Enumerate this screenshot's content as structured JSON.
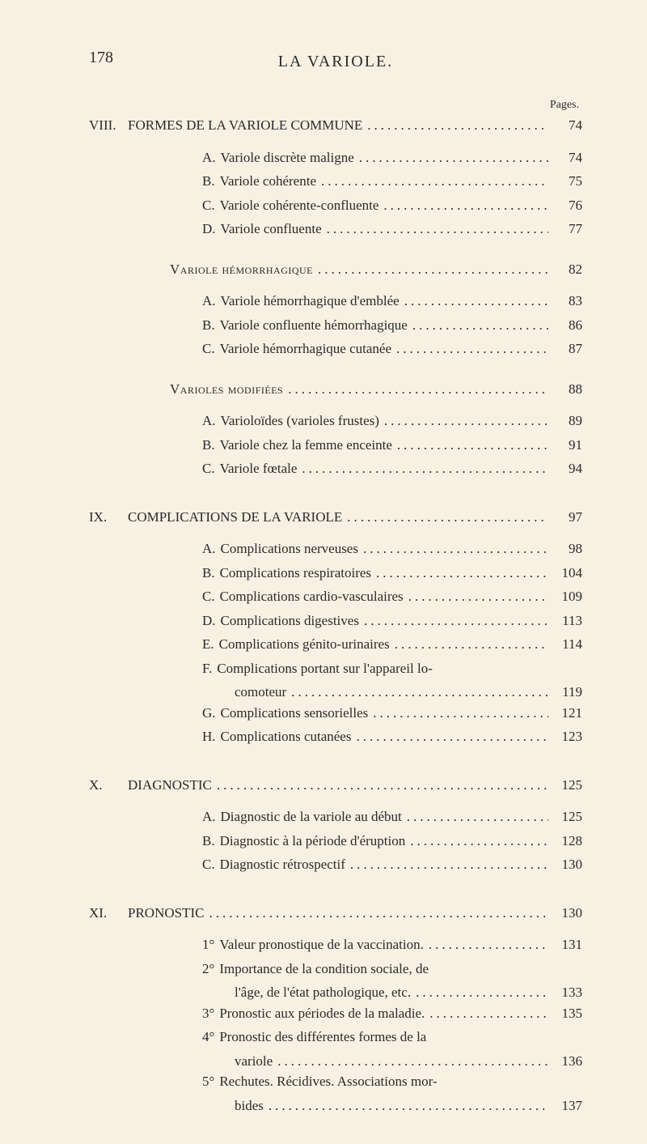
{
  "page_number": "178",
  "running_head": "LA VARIOLE.",
  "pages_label": "Pages.",
  "entries": [
    {
      "roman": "VIII.",
      "text": "FORMES DE LA VARIOLE COMMUNE",
      "page": "74",
      "style": "main"
    },
    {
      "letter": "A.",
      "text": "Variole discrète maligne",
      "page": "74",
      "style": "sub"
    },
    {
      "letter": "B.",
      "text": "Variole cohérente",
      "page": "75",
      "style": "sub"
    },
    {
      "letter": "C.",
      "text": "Variole cohérente-confluente",
      "page": "76",
      "style": "sub"
    },
    {
      "letter": "D.",
      "text": "Variole confluente",
      "page": "77",
      "style": "sub"
    },
    {
      "text": "Variole hémorrhagique",
      "page": "82",
      "style": "smallcaps"
    },
    {
      "letter": "A.",
      "text": "Variole hémorrhagique d'emblée",
      "page": "83",
      "style": "sub"
    },
    {
      "letter": "B.",
      "text": "Variole confluente hémorrhagique",
      "page": "86",
      "style": "sub"
    },
    {
      "letter": "C.",
      "text": "Variole hémorrhagique cutanée",
      "page": "87",
      "style": "sub"
    },
    {
      "text": "Varioles modifiées",
      "page": "88",
      "style": "smallcaps"
    },
    {
      "letter": "A.",
      "text": "Varioloïdes (varioles frustes)",
      "page": "89",
      "style": "sub"
    },
    {
      "letter": "B.",
      "text": "Variole chez la femme enceinte",
      "page": "91",
      "style": "sub"
    },
    {
      "letter": "C.",
      "text": "Variole fœtale",
      "page": "94",
      "style": "sub"
    },
    {
      "roman": "IX.",
      "text": "COMPLICATIONS DE LA VARIOLE",
      "page": "97",
      "style": "main"
    },
    {
      "letter": "A.",
      "text": "Complications nerveuses",
      "page": "98",
      "style": "sub"
    },
    {
      "letter": "B.",
      "text": "Complications respiratoires",
      "page": "104",
      "style": "sub"
    },
    {
      "letter": "C.",
      "text": "Complications cardio-vasculaires",
      "page": "109",
      "style": "sub"
    },
    {
      "letter": "D.",
      "text": "Complications digestives",
      "page": "113",
      "style": "sub"
    },
    {
      "letter": "E.",
      "text": "Complications génito-urinaires",
      "page": "114",
      "style": "sub"
    },
    {
      "letter": "F.",
      "text": "Complications portant sur l'appareil lo-",
      "page": "",
      "style": "sub_nowrap_nopage"
    },
    {
      "text": "comoteur",
      "page": "119",
      "style": "continuation"
    },
    {
      "letter": "G.",
      "text": "Complications sensorielles",
      "page": "121",
      "style": "sub"
    },
    {
      "letter": "H.",
      "text": "Complications cutanées",
      "page": "123",
      "style": "sub"
    },
    {
      "roman": "X.",
      "text": "DIAGNOSTIC",
      "page": "125",
      "style": "main"
    },
    {
      "letter": "A.",
      "text": "Diagnostic de la variole au début",
      "page": "125",
      "style": "sub"
    },
    {
      "letter": "B.",
      "text": "Diagnostic à la période d'éruption",
      "page": "128",
      "style": "sub"
    },
    {
      "letter": "C.",
      "text": "Diagnostic rétrospectif",
      "page": "130",
      "style": "sub"
    },
    {
      "roman": "XI.",
      "text": "PRONOSTIC",
      "page": "130",
      "style": "main"
    },
    {
      "letter": "1°",
      "text": "Valeur pronostique de la vaccination.",
      "page": "131",
      "style": "sub"
    },
    {
      "letter": "2°",
      "text": "Importance de la condition sociale, de",
      "page": "",
      "style": "sub_nowrap_nopage"
    },
    {
      "text": "l'âge, de l'état pathologique, etc.",
      "page": "133",
      "style": "continuation"
    },
    {
      "letter": "3°",
      "text": "Pronostic aux périodes de la maladie.",
      "page": "135",
      "style": "sub"
    },
    {
      "letter": "4°",
      "text": "Pronostic des différentes formes de la",
      "page": "",
      "style": "sub_nowrap_nopage"
    },
    {
      "text": "variole",
      "page": "136",
      "style": "continuation"
    },
    {
      "letter": "5°",
      "text": "Rechutes. Récidives. Associations mor-",
      "page": "",
      "style": "sub_nowrap_nopage"
    },
    {
      "text": "bides",
      "page": "137",
      "style": "continuation"
    }
  ]
}
